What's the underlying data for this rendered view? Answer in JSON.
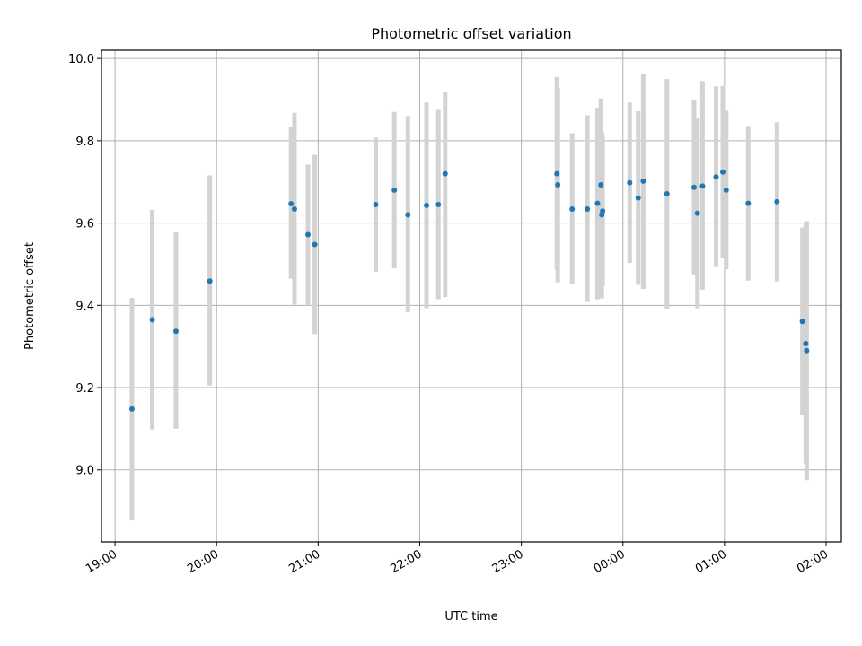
{
  "chart_data": {
    "type": "scatter",
    "title": "Photometric offset variation",
    "xlabel": "UTC time",
    "ylabel": "Photometric offset",
    "xlim": [
      "2000-01-01T18:52:00",
      "2000-01-02T02:09:00"
    ],
    "ylim": [
      8.825,
      10.02
    ],
    "grid": true,
    "colors": {
      "point": "#1f77b4",
      "errorbar": "#d3d3d3"
    },
    "x_ticks": [
      {
        "t": "2000-01-01T19:00:00",
        "label": "19:00"
      },
      {
        "t": "2000-01-01T20:00:00",
        "label": "20:00"
      },
      {
        "t": "2000-01-01T21:00:00",
        "label": "21:00"
      },
      {
        "t": "2000-01-01T22:00:00",
        "label": "22:00"
      },
      {
        "t": "2000-01-01T23:00:00",
        "label": "23:00"
      },
      {
        "t": "2000-01-02T00:00:00",
        "label": "00:00"
      },
      {
        "t": "2000-01-02T01:00:00",
        "label": "01:00"
      },
      {
        "t": "2000-01-02T02:00:00",
        "label": "02:00"
      }
    ],
    "y_ticks": [
      {
        "v": 9.0,
        "label": "9.0"
      },
      {
        "v": 9.2,
        "label": "9.2"
      },
      {
        "v": 9.4,
        "label": "9.4"
      },
      {
        "v": 9.6,
        "label": "9.6"
      },
      {
        "v": 9.8,
        "label": "9.8"
      },
      {
        "v": 10.0,
        "label": "10.0"
      }
    ],
    "points": [
      {
        "t": "2000-01-01T19:10:00",
        "y": 9.148,
        "lo": 8.877,
        "hi": 9.418
      },
      {
        "t": "2000-01-01T19:22:00",
        "y": 9.365,
        "lo": 9.098,
        "hi": 9.632
      },
      {
        "t": "2000-01-01T19:36:00",
        "y": 9.337,
        "lo": 9.1,
        "hi": 9.577
      },
      {
        "t": "2000-01-01T19:56:00",
        "y": 9.459,
        "lo": 9.205,
        "hi": 9.716
      },
      {
        "t": "2000-01-01T20:44:00",
        "y": 9.647,
        "lo": 9.465,
        "hi": 9.833
      },
      {
        "t": "2000-01-01T20:46:00",
        "y": 9.634,
        "lo": 9.402,
        "hi": 9.868
      },
      {
        "t": "2000-01-01T20:54:00",
        "y": 9.572,
        "lo": 9.4,
        "hi": 9.742
      },
      {
        "t": "2000-01-01T20:58:00",
        "y": 9.548,
        "lo": 9.33,
        "hi": 9.766
      },
      {
        "t": "2000-01-01T21:34:00",
        "y": 9.645,
        "lo": 9.482,
        "hi": 9.808
      },
      {
        "t": "2000-01-01T21:45:00",
        "y": 9.68,
        "lo": 9.49,
        "hi": 9.87
      },
      {
        "t": "2000-01-01T21:53:00",
        "y": 9.62,
        "lo": 9.383,
        "hi": 9.86
      },
      {
        "t": "2000-01-01T22:04:00",
        "y": 9.643,
        "lo": 9.393,
        "hi": 9.893
      },
      {
        "t": "2000-01-01T22:11:00",
        "y": 9.645,
        "lo": 9.415,
        "hi": 9.875
      },
      {
        "t": "2000-01-01T22:15:00",
        "y": 9.72,
        "lo": 9.42,
        "hi": 9.92
      },
      {
        "t": "2000-01-01T23:21:00",
        "y": 9.72,
        "lo": 9.487,
        "hi": 9.955
      },
      {
        "t": "2000-01-01T23:21:30",
        "y": 9.693,
        "lo": 9.456,
        "hi": 9.93
      },
      {
        "t": "2000-01-01T23:30:00",
        "y": 9.634,
        "lo": 9.453,
        "hi": 9.818
      },
      {
        "t": "2000-01-01T23:39:00",
        "y": 9.634,
        "lo": 9.408,
        "hi": 9.862
      },
      {
        "t": "2000-01-01T23:45:00",
        "y": 9.648,
        "lo": 9.415,
        "hi": 9.88
      },
      {
        "t": "2000-01-01T23:47:00",
        "y": 9.693,
        "lo": 9.44,
        "hi": 9.903
      },
      {
        "t": "2000-01-01T23:47:30",
        "y": 9.62,
        "lo": 9.417,
        "hi": 9.822
      },
      {
        "t": "2000-01-01T23:48:00",
        "y": 9.629,
        "lo": 9.447,
        "hi": 9.812
      },
      {
        "t": "2000-01-02T00:04:00",
        "y": 9.698,
        "lo": 9.503,
        "hi": 9.893
      },
      {
        "t": "2000-01-02T00:09:00",
        "y": 9.661,
        "lo": 9.45,
        "hi": 9.872
      },
      {
        "t": "2000-01-02T00:12:00",
        "y": 9.702,
        "lo": 9.44,
        "hi": 9.963
      },
      {
        "t": "2000-01-02T00:26:00",
        "y": 9.671,
        "lo": 9.392,
        "hi": 9.95
      },
      {
        "t": "2000-01-02T00:42:00",
        "y": 9.687,
        "lo": 9.475,
        "hi": 9.9
      },
      {
        "t": "2000-01-02T00:44:00",
        "y": 9.624,
        "lo": 9.393,
        "hi": 9.855
      },
      {
        "t": "2000-01-02T00:47:00",
        "y": 9.69,
        "lo": 9.438,
        "hi": 9.945
      },
      {
        "t": "2000-01-02T00:55:00",
        "y": 9.712,
        "lo": 9.493,
        "hi": 9.932
      },
      {
        "t": "2000-01-02T00:59:00",
        "y": 9.724,
        "lo": 9.515,
        "hi": 9.933
      },
      {
        "t": "2000-01-02T01:01:00",
        "y": 9.68,
        "lo": 9.488,
        "hi": 9.873
      },
      {
        "t": "2000-01-02T01:14:00",
        "y": 9.648,
        "lo": 9.46,
        "hi": 9.836
      },
      {
        "t": "2000-01-02T01:31:00",
        "y": 9.652,
        "lo": 9.458,
        "hi": 9.845
      },
      {
        "t": "2000-01-02T01:46:00",
        "y": 9.361,
        "lo": 9.133,
        "hi": 9.589
      },
      {
        "t": "2000-01-02T01:48:00",
        "y": 9.307,
        "lo": 9.015,
        "hi": 9.598
      },
      {
        "t": "2000-01-02T01:48:30",
        "y": 9.29,
        "lo": 8.975,
        "hi": 9.605
      }
    ]
  }
}
